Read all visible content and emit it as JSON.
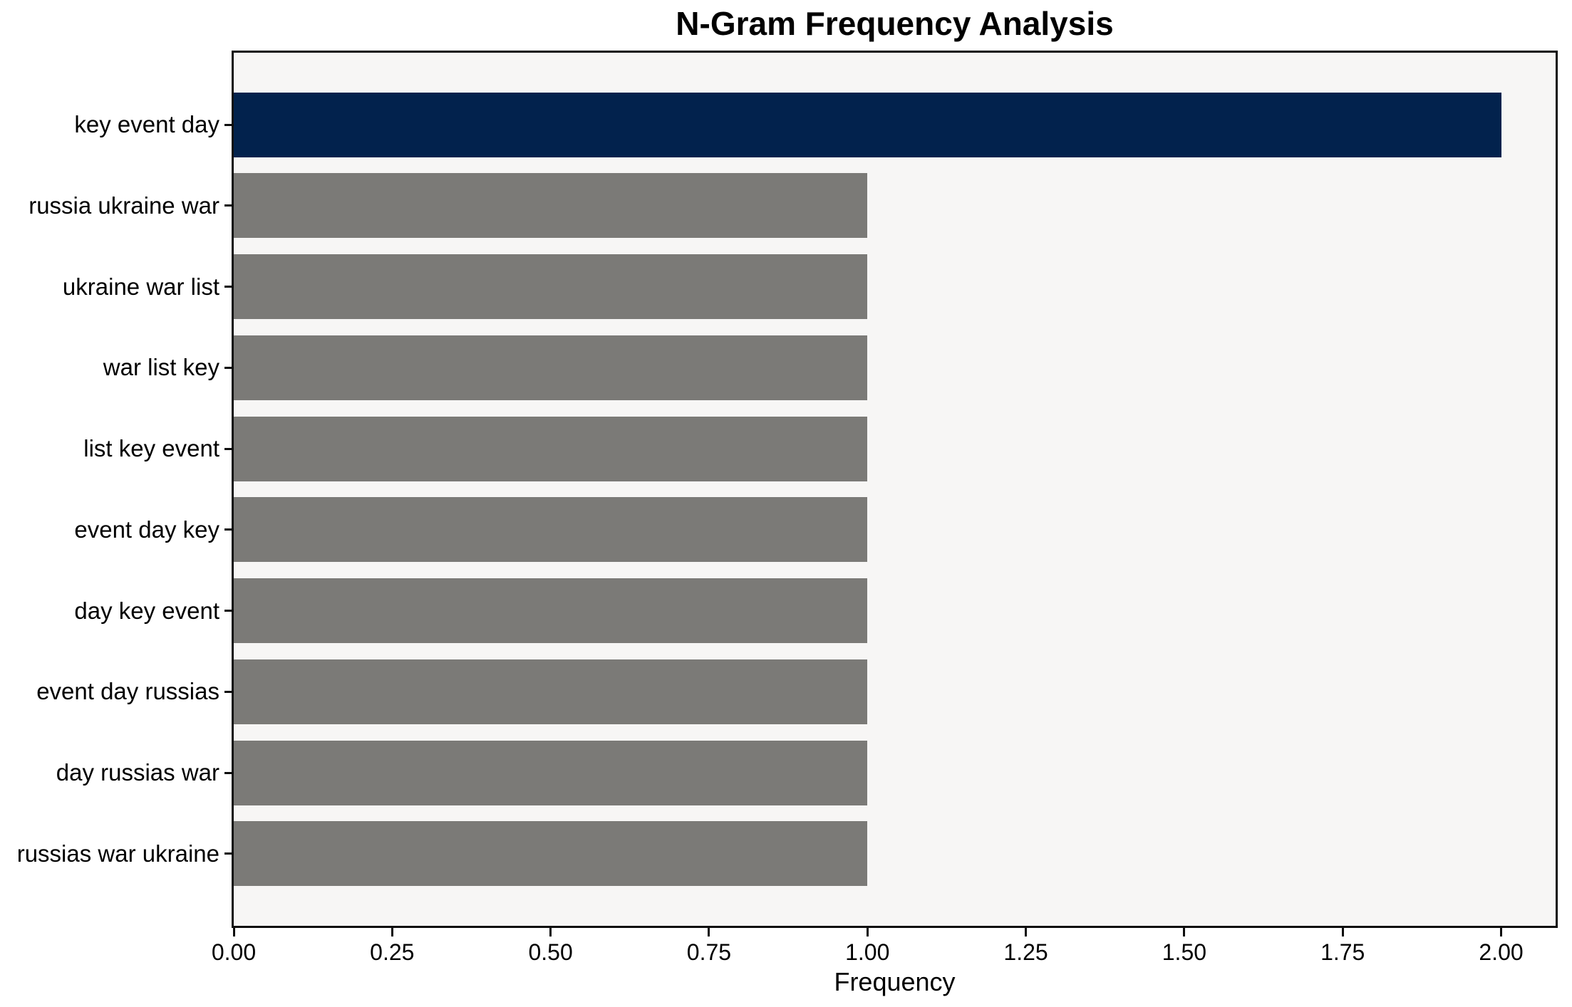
{
  "chart_data": {
    "type": "bar",
    "orientation": "horizontal",
    "title": "N-Gram Frequency Analysis",
    "xlabel": "Frequency",
    "ylabel": "",
    "categories": [
      "key event day",
      "russia ukraine war",
      "ukraine war list",
      "war list key",
      "list key event",
      "event day key",
      "day key event",
      "event day russias",
      "day russias war",
      "russias war ukraine"
    ],
    "values": [
      2,
      1,
      1,
      1,
      1,
      1,
      1,
      1,
      1,
      1
    ],
    "bar_colors": [
      "#02224d",
      "#7b7a77",
      "#7b7a77",
      "#7b7a77",
      "#7b7a77",
      "#7b7a77",
      "#7b7a77",
      "#7b7a77",
      "#7b7a77",
      "#7b7a77"
    ],
    "x_ticks": [
      "0.00",
      "0.25",
      "0.50",
      "0.75",
      "1.00",
      "1.25",
      "1.50",
      "1.75",
      "2.00"
    ],
    "xlim": [
      0,
      2.086
    ],
    "grid": false,
    "legend": null,
    "plot_bg_color": "#f7f6f5",
    "figure_bg_color": "#ffffff",
    "spine_color": "#0d0d0d",
    "highlight_color": "#02224d",
    "default_bar_color": "#7b7a77"
  }
}
